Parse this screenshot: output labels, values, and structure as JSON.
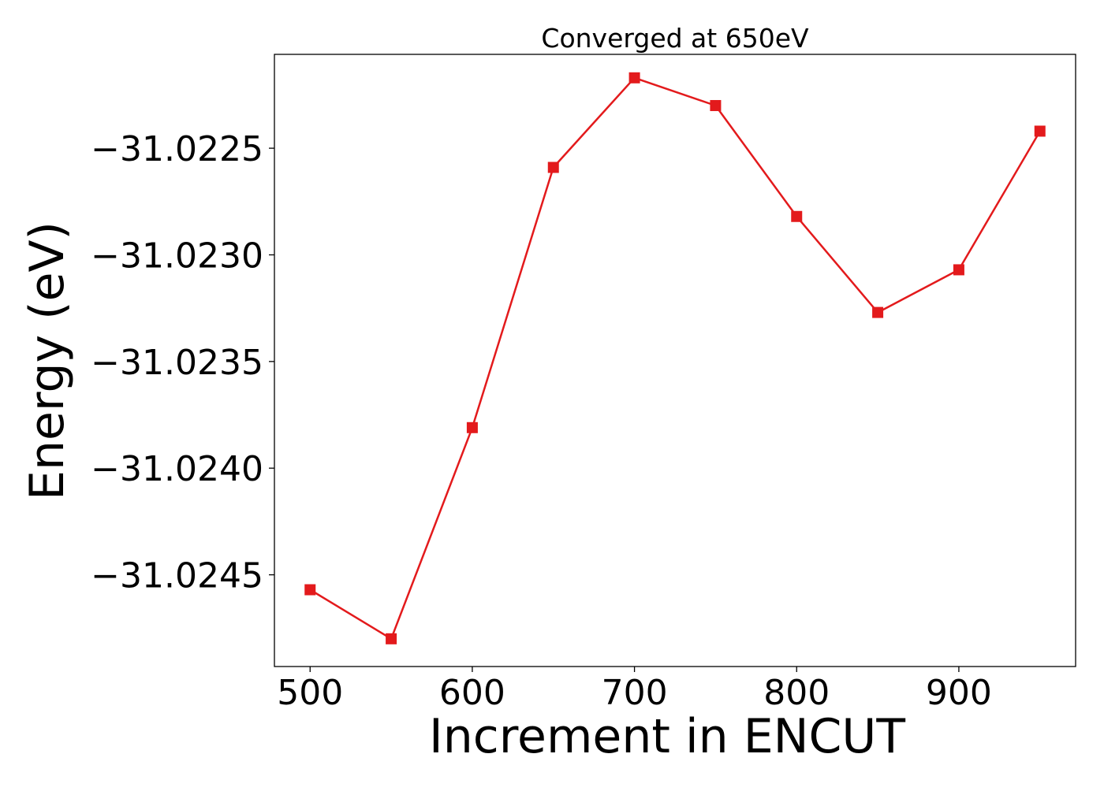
{
  "chart_data": {
    "type": "line",
    "title": "Converged at 650eV",
    "xlabel": "Increment in ENCUT",
    "ylabel": "Energy (eV)",
    "x": [
      500,
      550,
      600,
      650,
      700,
      750,
      800,
      850,
      900,
      950
    ],
    "series": [
      {
        "values": [
          -31.02457,
          -31.0248,
          -31.02381,
          -31.02259,
          -31.02217,
          -31.0223,
          -31.02282,
          -31.02327,
          -31.02307,
          -31.02242
        ]
      }
    ],
    "xlim": [
      478,
      972
    ],
    "ylim": [
      -31.02493,
      -31.02206
    ],
    "xticks": [
      500,
      600,
      700,
      800,
      900
    ],
    "xtick_labels": [
      "500",
      "600",
      "700",
      "800",
      "900"
    ],
    "yticks": [
      -31.0225,
      -31.023,
      -31.0235,
      -31.024,
      -31.0245
    ],
    "ytick_labels": [
      "−31.0225",
      "−31.0230",
      "−31.0235",
      "−31.0240",
      "−31.0245"
    ],
    "grid": false,
    "legend": "none",
    "line_color": "#e31a1c",
    "marker": "square"
  }
}
